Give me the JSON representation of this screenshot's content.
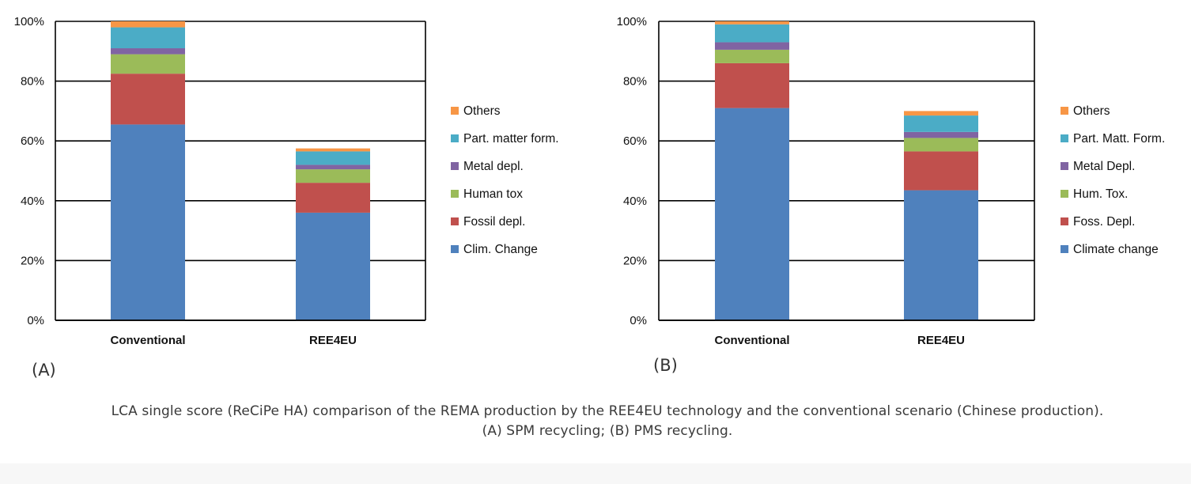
{
  "chart_data": [
    {
      "type": "bar",
      "stacked": true,
      "panel_label": "(A)",
      "categories": [
        "Conventional",
        "REE4EU"
      ],
      "ylim": [
        0,
        100
      ],
      "yticks": [
        "0%",
        "20%",
        "40%",
        "60%",
        "80%",
        "100%"
      ],
      "grid": true,
      "legend_position": "right",
      "series": [
        {
          "name": "Clim. Change",
          "color": "#4f81bd",
          "values": [
            65.5,
            36
          ]
        },
        {
          "name": "Fossil depl.",
          "color": "#c0504d",
          "values": [
            17,
            10
          ]
        },
        {
          "name": "Human tox",
          "color": "#9bbb59",
          "values": [
            6.5,
            4.5
          ]
        },
        {
          "name": "Metal depl.",
          "color": "#8064a2",
          "values": [
            2,
            1.5
          ]
        },
        {
          "name": "Part. matter form.",
          "color": "#4bacc6",
          "values": [
            7,
            4.5
          ]
        },
        {
          "name": "Others",
          "color": "#f79646",
          "values": [
            2,
            1
          ]
        }
      ]
    },
    {
      "type": "bar",
      "stacked": true,
      "panel_label": "(B)",
      "categories": [
        "Conventional",
        "REE4EU"
      ],
      "ylim": [
        0,
        100
      ],
      "yticks": [
        "0%",
        "20%",
        "40%",
        "60%",
        "80%",
        "100%"
      ],
      "grid": true,
      "legend_position": "right",
      "series": [
        {
          "name": "Climate change",
          "color": "#4f81bd",
          "values": [
            71,
            43.5
          ]
        },
        {
          "name": "Foss. Depl.",
          "color": "#c0504d",
          "values": [
            15,
            13
          ]
        },
        {
          "name": "Hum. Tox.",
          "color": "#9bbb59",
          "values": [
            4.5,
            4.5
          ]
        },
        {
          "name": "Metal Depl.",
          "color": "#8064a2",
          "values": [
            2.5,
            2
          ]
        },
        {
          "name": "Part. Matt. Form.",
          "color": "#4bacc6",
          "values": [
            6,
            5.5
          ]
        },
        {
          "name": "Others",
          "color": "#f79646",
          "values": [
            1,
            1.5
          ]
        }
      ]
    }
  ],
  "caption": "LCA single score (ReCiPe HA) comparison of the REMA production by the REE4EU technology and the conventional scenario (Chinese production). (A) SPM recycling; (B) PMS recycling."
}
